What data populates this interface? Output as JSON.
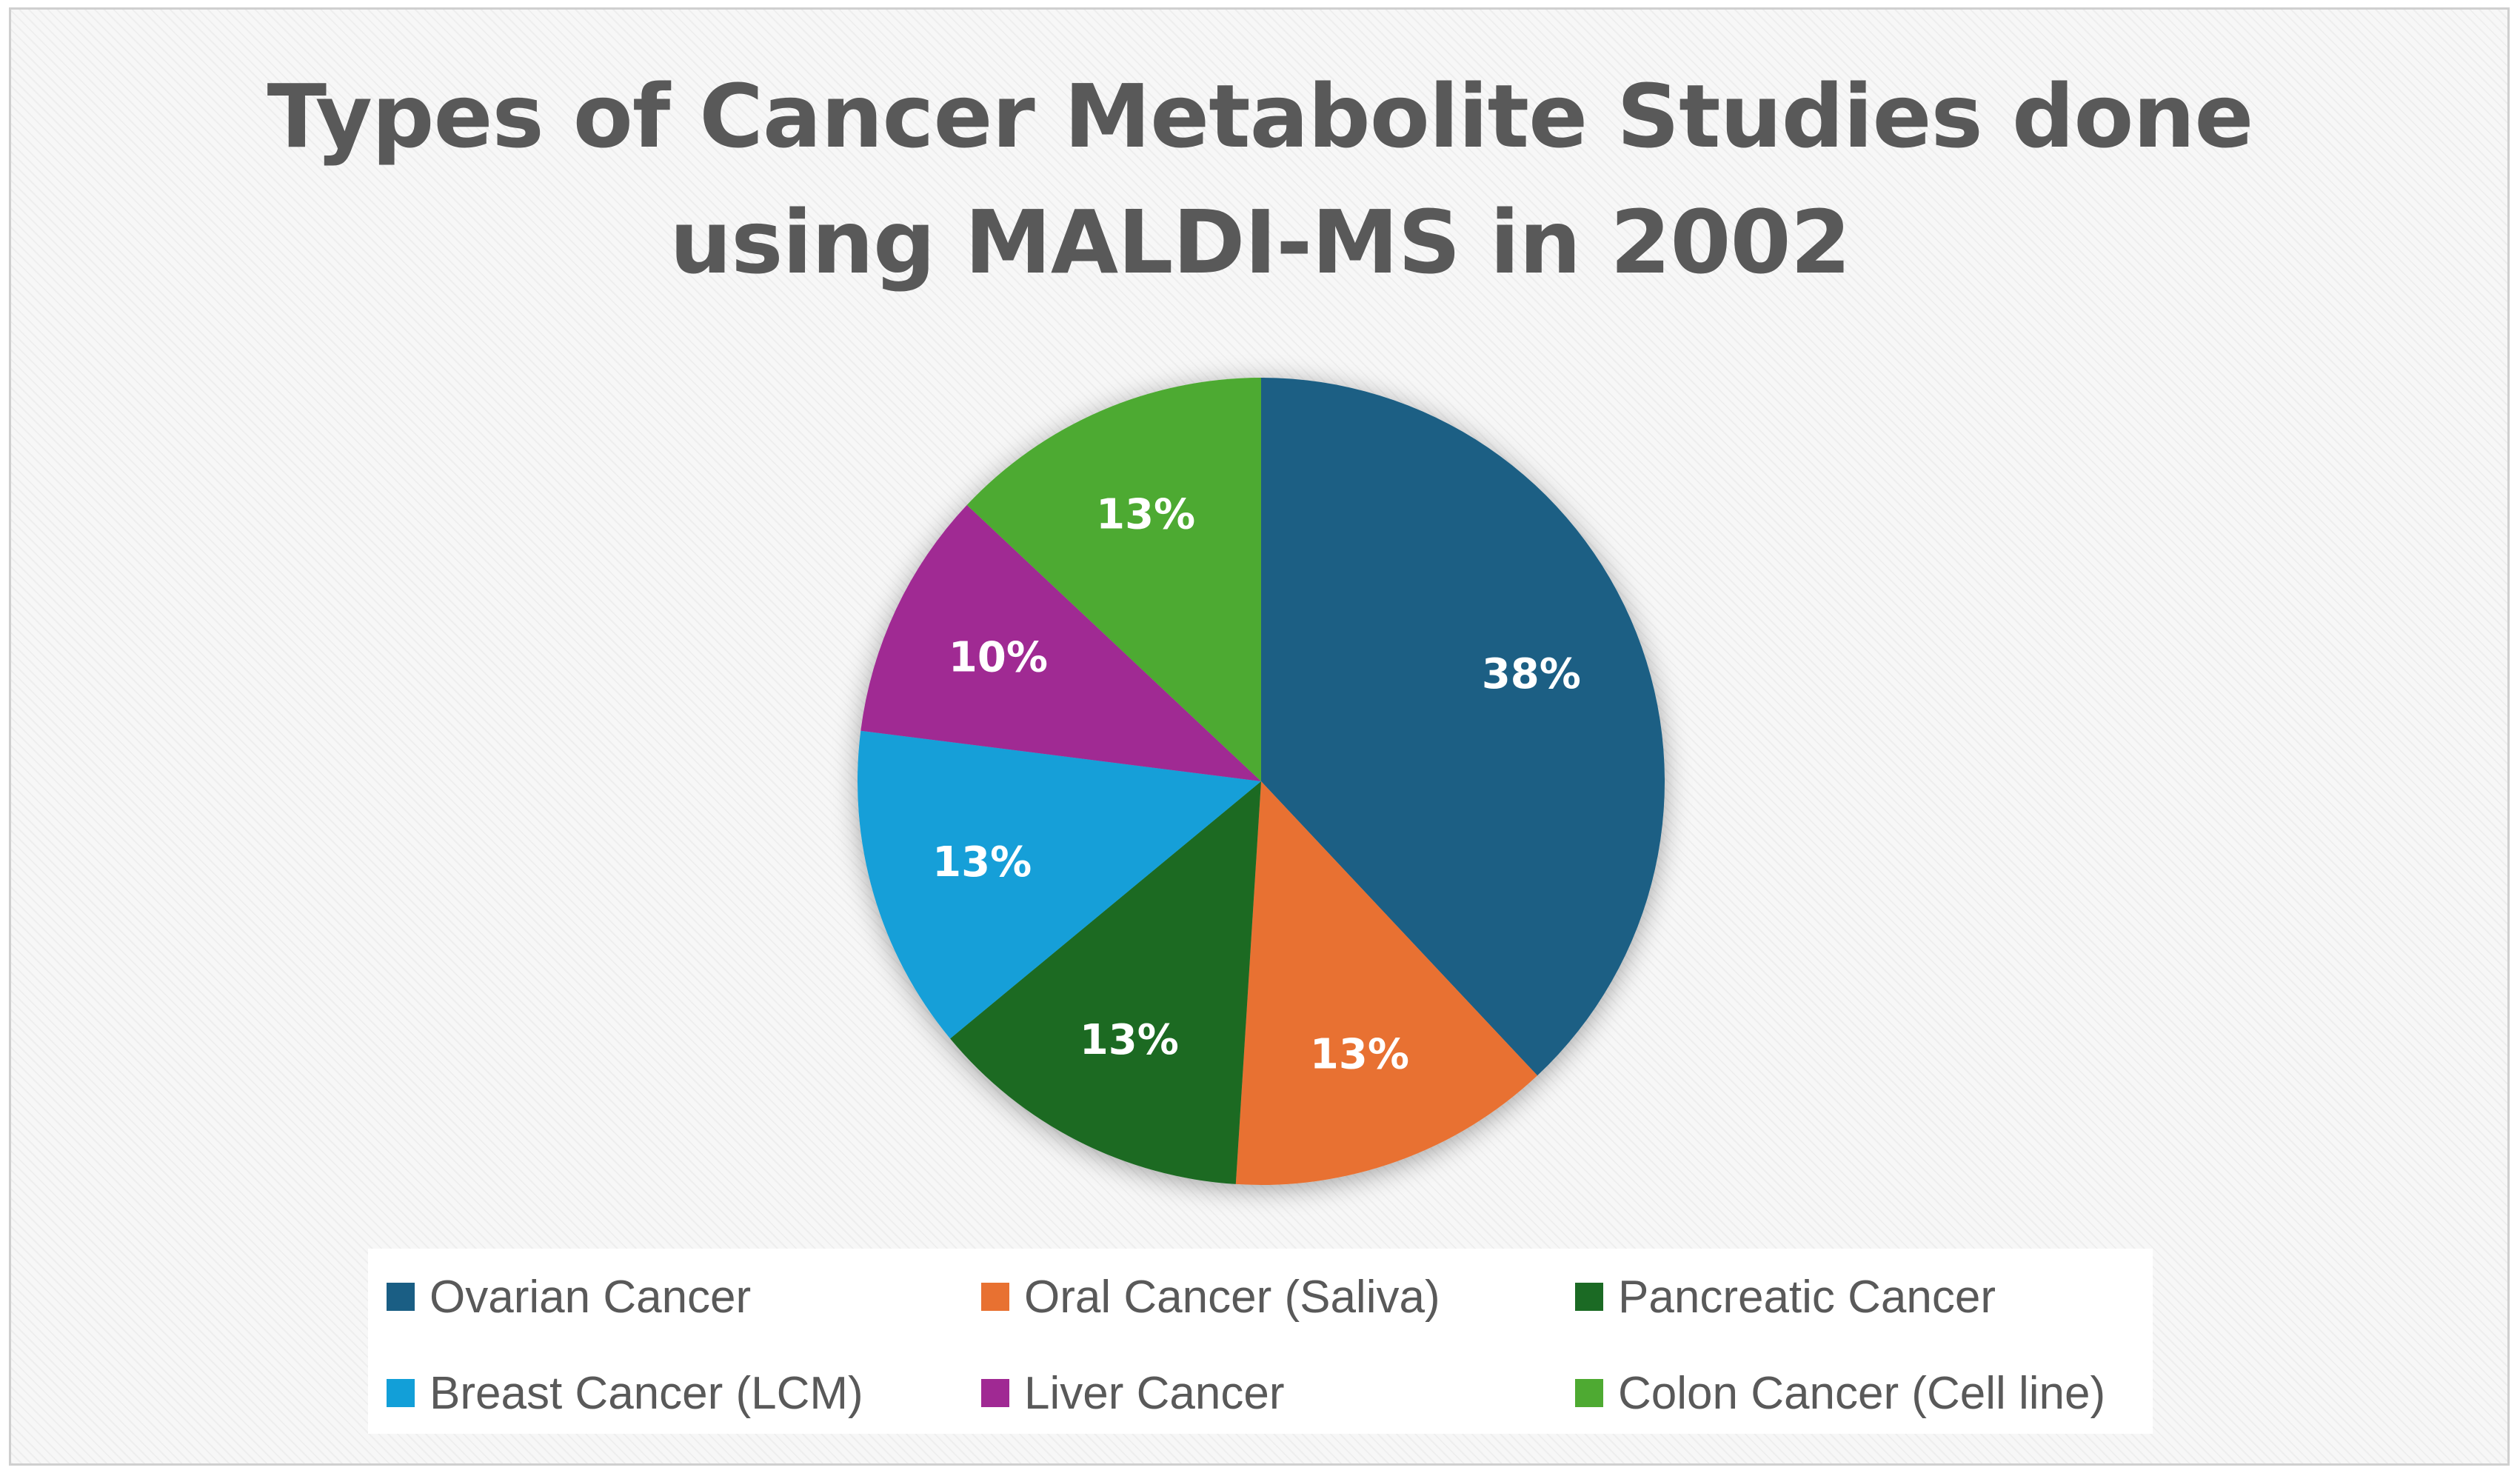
{
  "chart_data": {
    "type": "pie",
    "title_lines": [
      "Types of Cancer Metabolite Studies done",
      "using MALDI-MS in 2002"
    ],
    "categories": [
      "Ovarian Cancer",
      "Oral Cancer (Saliva)",
      "Pancreatic Cancer",
      "Breast Cancer (LCM)",
      "Liver Cancer",
      "Colon Cancer (Cell line)"
    ],
    "values": [
      38,
      13,
      13,
      13,
      10,
      13
    ],
    "data_labels": [
      "38%",
      "13%",
      "13%",
      "13%",
      "10%",
      "13%"
    ],
    "colors": [
      "#1a5e84",
      "#e87131",
      "#1b6a24",
      "#129fd8",
      "#a02993",
      "#4eaa32"
    ],
    "legend_position": "bottom",
    "start_angle": "12 o'clock, clockwise"
  }
}
